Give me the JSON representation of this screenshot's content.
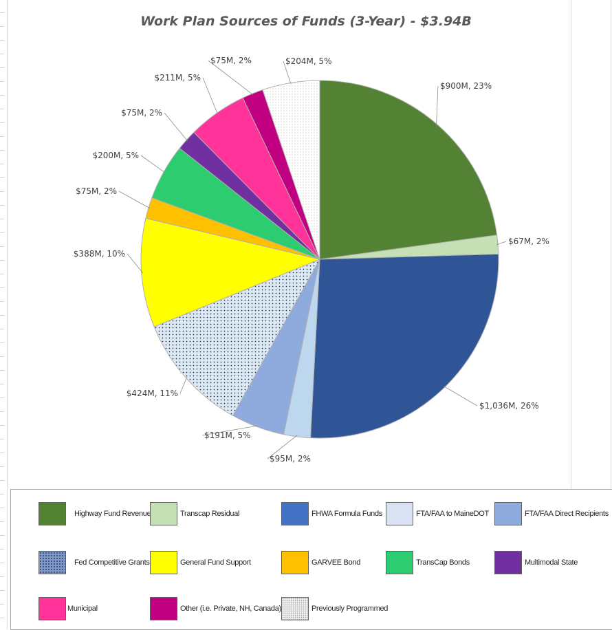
{
  "chart_data": {
    "type": "pie",
    "title": "Work Plan Sources of Funds (3-Year) - $3.94B",
    "slices": [
      {
        "name": "Highway Fund Revenue",
        "value": 900,
        "label": "$900M, 23%",
        "color": "#548235",
        "pattern": "none"
      },
      {
        "name": "Transcap Residual",
        "value": 67,
        "label": "$67M, 2%",
        "color": "#c5e0b4",
        "pattern": "none"
      },
      {
        "name": "FHWA Formula Funds",
        "value": 1036,
        "label": "$1,036M, 26%",
        "color": "#2f5597",
        "pattern": "none"
      },
      {
        "name": "FTA/FAA to MaineDOT",
        "value": 95,
        "label": "$95M, 2%",
        "color": "#bdd7ee",
        "pattern": "none"
      },
      {
        "name": "FTA/FAA Direct Recipients",
        "value": 191,
        "label": "$191M, 5%",
        "color": "#8faadc",
        "pattern": "none"
      },
      {
        "name": "Fed Competitive Grants",
        "value": 424,
        "label": "$424M, 11%",
        "color": "#dce9f5",
        "pattern": "dots"
      },
      {
        "name": "General Fund Support",
        "value": 388,
        "label": "$388M, 10%",
        "color": "#ffff00",
        "pattern": "none"
      },
      {
        "name": "GARVEE Bond",
        "value": 75,
        "label": "$75M, 2%",
        "color": "#ffc000",
        "pattern": "none"
      },
      {
        "name": "TransCap Bonds",
        "value": 200,
        "label": "$200M, 5%",
        "color": "#2ecc71",
        "pattern": "none"
      },
      {
        "name": "Multimodal State",
        "value": 75,
        "label": "$75M, 2%",
        "color": "#7030a0",
        "pattern": "none"
      },
      {
        "name": "Municipal",
        "value": 211,
        "label": "$211M, 5%",
        "color": "#ff3399",
        "pattern": "none"
      },
      {
        "name": "Other (i.e. Private, NH, Canada)",
        "value": 75,
        "label": "$75M, 2%",
        "color": "#c00080",
        "pattern": "none"
      },
      {
        "name": "Previously Programmed",
        "value": 204,
        "label": "$204M, 5%",
        "color": "#ffffff",
        "pattern": "fine-dots"
      }
    ],
    "legend": {
      "placement": "bottom",
      "items": [
        {
          "label": "Highway Fund Revenue",
          "color": "#548235",
          "pattern": "none"
        },
        {
          "label": "Transcap Residual",
          "color": "#c5e0b4",
          "pattern": "none"
        },
        {
          "label": "FHWA Formula Funds",
          "color": "#4472c4",
          "pattern": "none"
        },
        {
          "label": "FTA/FAA to MaineDOT",
          "color": "#dae3f3",
          "pattern": "none"
        },
        {
          "label": "FTA/FAA Direct Recipients",
          "color": "#8faadc",
          "pattern": "none"
        },
        {
          "label": "Fed Competitive Grants",
          "color": "#7f99c8",
          "pattern": "dots"
        },
        {
          "label": "General Fund Support",
          "color": "#ffff00",
          "pattern": "none"
        },
        {
          "label": "GARVEE Bond",
          "color": "#ffc000",
          "pattern": "none"
        },
        {
          "label": "TransCap Bonds",
          "color": "#2ecc71",
          "pattern": "none"
        },
        {
          "label": "Multimodal State",
          "color": "#7030a0",
          "pattern": "none"
        },
        {
          "label": "Municipal",
          "color": "#ff3399",
          "pattern": "none"
        },
        {
          "label": "Other (i.e. Private, NH, Canada)",
          "color": "#c00080",
          "pattern": "none"
        },
        {
          "label": "Previously Programmed",
          "color": "#ececec",
          "pattern": "fine-dots"
        }
      ]
    }
  }
}
